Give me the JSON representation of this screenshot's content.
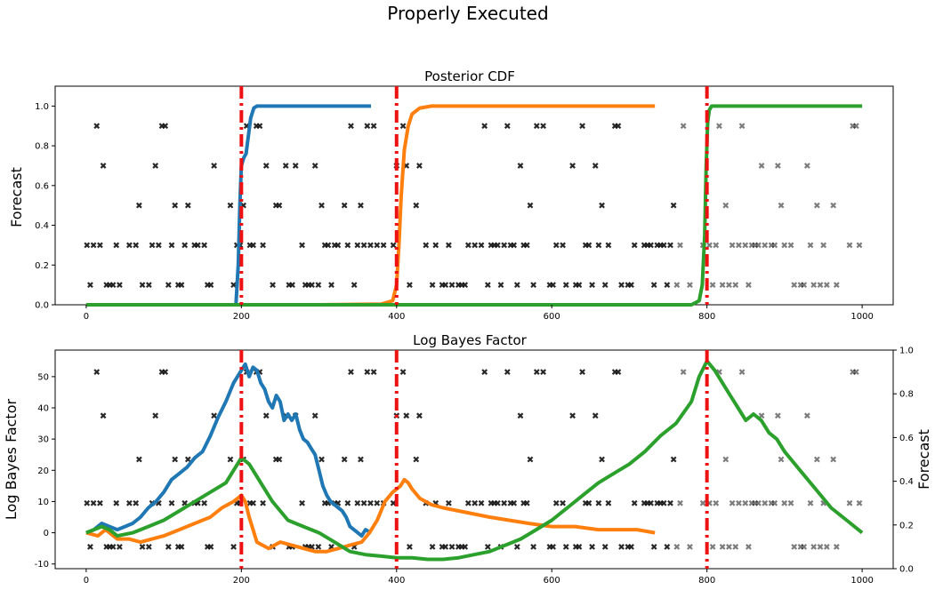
{
  "figure": {
    "suptitle": "Properly Executed"
  },
  "chart_data": [
    {
      "type": "line",
      "title": "Posterior CDF",
      "xlabel": "",
      "ylabel": "Forecast",
      "xlim": [
        -40,
        1040
      ],
      "ylim": [
        0.0,
        1.1
      ],
      "x_ticks": [
        0,
        200,
        400,
        600,
        800,
        1000
      ],
      "y_ticks": [
        0.0,
        0.2,
        0.4,
        0.6,
        0.8,
        1.0
      ],
      "vlines": [
        200,
        400,
        800
      ],
      "vline_color": "#ee1111",
      "forecast_levels": [
        0.1,
        0.3,
        0.5,
        0.7,
        0.9
      ],
      "series": [
        {
          "color": "#1f77b4",
          "x": [
            193,
            196,
            198,
            200,
            203,
            206,
            209,
            212,
            216,
            220,
            226,
            240,
            300,
            367
          ],
          "y": [
            0.0,
            0.2,
            0.5,
            0.7,
            0.74,
            0.76,
            0.85,
            0.94,
            0.99,
            1.0,
            1.0,
            1.0,
            1.0,
            1.0
          ]
        },
        {
          "color": "#ff7f0e",
          "x": [
            0,
            100,
            200,
            300,
            380,
            395,
            400,
            403,
            406,
            410,
            415,
            420,
            430,
            445,
            470,
            600,
            733
          ],
          "y": [
            0.0,
            0.0,
            0.0,
            0.0,
            0.003,
            0.02,
            0.1,
            0.3,
            0.55,
            0.78,
            0.9,
            0.96,
            0.99,
            1.0,
            1.0,
            1.0,
            1.0
          ]
        },
        {
          "color": "#2ca02c",
          "x": [
            0,
            200,
            400,
            600,
            780,
            790,
            794,
            797,
            799,
            801,
            803,
            806,
            810,
            850,
            1000
          ],
          "y": [
            0.0,
            0.0,
            0.0,
            0.0,
            0.0,
            0.02,
            0.1,
            0.35,
            0.7,
            0.92,
            0.98,
            1.0,
            1.0,
            1.0,
            1.0
          ]
        }
      ]
    },
    {
      "type": "line",
      "title": "Log Bayes Factor",
      "xlabel": "",
      "ylabel": "Log Bayes Factor",
      "ylabel_right": "Forecast",
      "xlim": [
        -40,
        1040
      ],
      "ylim": [
        -11.5,
        58.5
      ],
      "ylim_right": [
        0.0,
        1.0
      ],
      "x_ticks": [
        0,
        200,
        400,
        600,
        800,
        1000
      ],
      "y_ticks": [
        -10,
        0,
        10,
        20,
        30,
        40,
        50
      ],
      "y_ticks_right": [
        0.0,
        0.2,
        0.4,
        0.6,
        0.8,
        1.0
      ],
      "vlines": [
        200,
        400,
        800
      ],
      "vline_color": "#ee1111",
      "series": [
        {
          "color": "#1f77b4",
          "x": [
            0,
            10,
            20,
            30,
            40,
            50,
            60,
            70,
            80,
            90,
            100,
            110,
            120,
            130,
            140,
            150,
            160,
            170,
            180,
            190,
            200,
            205,
            210,
            215,
            220,
            225,
            230,
            235,
            240,
            245,
            250,
            255,
            260,
            265,
            270,
            275,
            280,
            285,
            290,
            295,
            300,
            305,
            310,
            315,
            320,
            325,
            330,
            335,
            340,
            345,
            350,
            355,
            360,
            367
          ],
          "y": [
            0,
            1,
            3,
            2,
            1,
            2,
            3,
            5,
            8,
            10,
            13,
            17,
            19,
            21,
            24,
            26,
            31,
            37,
            42,
            48,
            52,
            54,
            50,
            53,
            52,
            48,
            46,
            42,
            40,
            44,
            42,
            36,
            38,
            36,
            38,
            33,
            30,
            29,
            27,
            25,
            20,
            15,
            12,
            10,
            9,
            8,
            7,
            5,
            2,
            1,
            0,
            -1,
            1,
            0
          ]
        },
        {
          "color": "#ff7f0e",
          "x": [
            0,
            15,
            25,
            40,
            55,
            70,
            85,
            100,
            120,
            140,
            160,
            175,
            190,
            200,
            205,
            210,
            220,
            235,
            250,
            265,
            280,
            295,
            310,
            325,
            340,
            355,
            365,
            375,
            385,
            395,
            400,
            405,
            410,
            415,
            420,
            430,
            445,
            460,
            480,
            500,
            520,
            545,
            570,
            600,
            630,
            660,
            690,
            710,
            733
          ],
          "y": [
            0,
            -1,
            1,
            -2,
            -2,
            -3,
            -2,
            -1,
            1,
            3,
            5,
            8,
            10,
            12,
            10,
            5,
            -3,
            -5,
            -3,
            -4,
            -5,
            -6,
            -6,
            -5,
            -4,
            -3,
            0,
            4,
            10,
            13,
            14,
            15,
            17,
            16,
            14,
            11,
            9,
            8,
            7,
            6,
            5,
            4,
            3,
            2,
            2,
            1,
            1,
            1,
            0
          ]
        },
        {
          "color": "#2ca02c",
          "x": [
            0,
            10,
            20,
            30,
            40,
            60,
            80,
            100,
            120,
            140,
            160,
            180,
            190,
            200,
            210,
            220,
            230,
            240,
            260,
            280,
            300,
            320,
            340,
            360,
            380,
            400,
            420,
            440,
            460,
            480,
            500,
            520,
            540,
            560,
            580,
            600,
            620,
            640,
            660,
            680,
            700,
            720,
            740,
            760,
            780,
            790,
            800,
            810,
            820,
            830,
            840,
            850,
            860,
            870,
            880,
            890,
            900,
            920,
            940,
            960,
            980,
            1000
          ],
          "y": [
            0,
            1,
            2,
            1,
            -1,
            0,
            2,
            4,
            7,
            10,
            13,
            16,
            20,
            24,
            22,
            18,
            14,
            10,
            4,
            2,
            0,
            -3,
            -6,
            -7,
            -7.5,
            -8,
            -8,
            -8.5,
            -8.5,
            -8,
            -7,
            -6,
            -4,
            -2,
            1,
            4,
            8,
            12,
            16,
            19,
            22,
            26,
            31,
            35,
            42,
            50,
            55,
            52,
            48,
            44,
            40,
            36,
            38,
            36,
            32,
            30,
            26,
            20,
            14,
            8,
            4,
            0
          ]
        }
      ]
    }
  ]
}
